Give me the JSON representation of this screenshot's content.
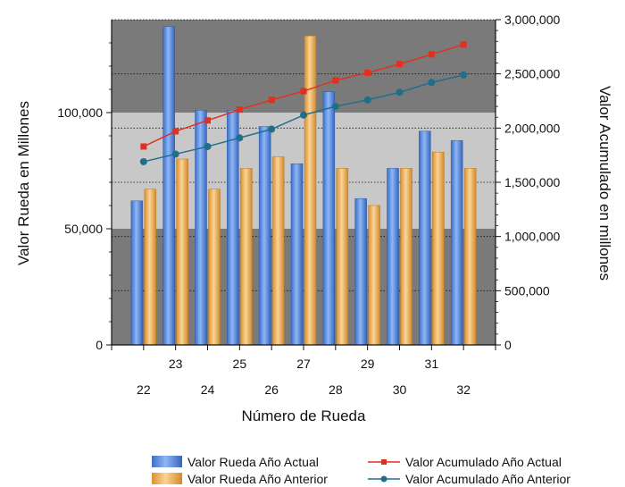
{
  "chart_data": {
    "type": "bar",
    "title": "",
    "xlabel": "Número de Rueda",
    "ylabel": "Valor Rueda en Millones",
    "y2label": "Valor Acumulado en millones",
    "categories": [
      "22",
      "23",
      "24",
      "25",
      "26",
      "27",
      "28",
      "29",
      "30",
      "31",
      "32"
    ],
    "ylim": [
      0,
      140000
    ],
    "y2lim": [
      0,
      3000000
    ],
    "yticks": [
      "0",
      "50,000",
      "100,000"
    ],
    "yticks_values": [
      0,
      50000,
      100000
    ],
    "y2ticks": [
      "0",
      "500,000",
      "1,000,000",
      "1,500,000",
      "2,000,000",
      "2,500,000",
      "3,000,000"
    ],
    "y2ticks_values": [
      0,
      500000,
      1000000,
      1500000,
      2000000,
      2500000,
      3000000
    ],
    "bands": [
      {
        "from": 50000,
        "to": 100000,
        "color": "#c8c8c8"
      }
    ],
    "series": [
      {
        "name": "Valor Rueda Año Actual",
        "kind": "bar",
        "axis": "left",
        "color": "#4a86e8",
        "values": [
          62000,
          137000,
          101000,
          101000,
          94000,
          78000,
          109000,
          63000,
          76000,
          92000,
          88000
        ]
      },
      {
        "name": "Valor Rueda Año Anterior",
        "kind": "bar",
        "axis": "left",
        "color": "#f5b041",
        "values": [
          67000,
          80000,
          67000,
          76000,
          81000,
          133000,
          76000,
          60000,
          76000,
          83000,
          76000
        ]
      },
      {
        "name": "Valor Acumulado Año Actual",
        "kind": "line",
        "axis": "right",
        "color": "#e03020",
        "marker": "square",
        "values": [
          1830000,
          1970000,
          2070000,
          2170000,
          2260000,
          2340000,
          2440000,
          2510000,
          2590000,
          2680000,
          2770000
        ]
      },
      {
        "name": "Valor Acumulado Año Anterior",
        "kind": "line",
        "axis": "right",
        "color": "#1f6f8b",
        "marker": "circle",
        "values": [
          1690000,
          1760000,
          1830000,
          1910000,
          1990000,
          2120000,
          2200000,
          2260000,
          2330000,
          2420000,
          2490000
        ]
      }
    ],
    "legend_position": "bottom",
    "grid": true
  }
}
